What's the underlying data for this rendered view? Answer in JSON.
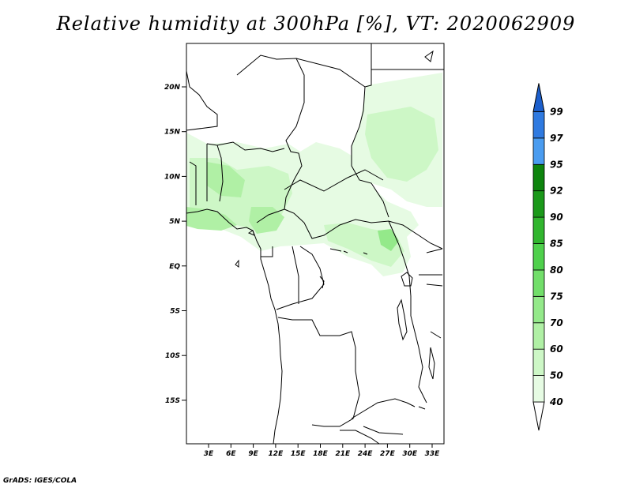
{
  "title": "Relative humidity at 300hPa [%], VT: 2020062909",
  "credit": "GrADS: IGES/COLA",
  "map": {
    "lat_ticks": [
      "20N",
      "15N",
      "10N",
      "5N",
      "EQ",
      "5S",
      "10S",
      "15S"
    ],
    "lon_ticks": [
      "3E",
      "6E",
      "9E",
      "12E",
      "15E",
      "18E",
      "21E",
      "24E",
      "27E",
      "30E",
      "33E"
    ]
  },
  "colorbar": {
    "levels": [
      "40",
      "50",
      "60",
      "70",
      "75",
      "80",
      "85",
      "90",
      "92",
      "95",
      "97",
      "99"
    ],
    "colors": [
      "#ffffff",
      "#e6fbe3",
      "#cdf7c6",
      "#b0f0a5",
      "#94e98a",
      "#72de6a",
      "#4fd04c",
      "#31b52e",
      "#1b991a",
      "#0d840d",
      "#4a9cf0",
      "#2f7ae0",
      "#1c5fcc"
    ]
  }
}
